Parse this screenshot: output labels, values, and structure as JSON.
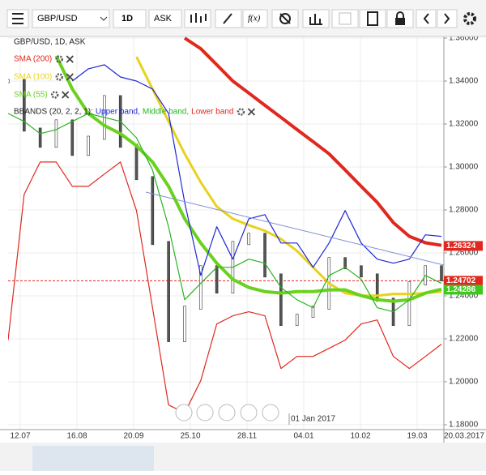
{
  "toolbar": {
    "symbol": "GBP/USD",
    "period": "1D",
    "price_type": "ASK"
  },
  "chart_data": {
    "type": "line",
    "bbands_label": "BBANDS (20, 2, 2, 1):",
    "marker_label": "01 Jan 2017",
    "xtick_labels": [
      "12.07",
      "16.08",
      "20.09",
      "25.10",
      "28.11",
      "04.01",
      "10.02",
      "19.03"
    ],
    "current_date": "20.03.2017",
    "ylim": [
      1.18,
      1.36
    ],
    "yticks": [
      {
        "value": 1.18,
        "label": "1.18000"
      },
      {
        "value": 1.2,
        "label": "1.20000"
      },
      {
        "value": 1.22,
        "label": "1.22000"
      },
      {
        "value": 1.24,
        "label": "1.24000"
      },
      {
        "value": 1.26,
        "label": "1.26000"
      },
      {
        "value": 1.28,
        "label": "1.28000"
      },
      {
        "value": 1.3,
        "label": "1.30000"
      },
      {
        "value": 1.32,
        "label": "1.32000"
      },
      {
        "value": 1.34,
        "label": "1.34000"
      },
      {
        "value": 1.36,
        "label": "1.36000"
      }
    ],
    "grid": true,
    "price_labels": [
      {
        "value": 1.26324,
        "color": "#e0281e"
      },
      {
        "value": 1.24702,
        "color": "#e0281e"
      },
      {
        "value": 1.24286,
        "color": "#3cc81e"
      }
    ],
    "current_price": 1.24702,
    "series": [
      {
        "name": "GBP/USD, 1D, ASK",
        "color": "#333333",
        "style": "price",
        "values": [
          1.34,
          1.3174,
          1.3099,
          1.3212,
          1.3061,
          1.3136,
          1.3325,
          1.3099,
          1.2948,
          1.2646,
          1.2194,
          1.2345,
          1.2533,
          1.242,
          1.2646,
          1.2684,
          1.2495,
          1.2269,
          1.2307,
          1.2345,
          1.2571,
          1.2533,
          1.2495,
          1.2382,
          1.2269,
          1.2458,
          1.2533,
          1.2477
        ]
      },
      {
        "name": "SMA (200)",
        "color": "#e0281e",
        "width": 4,
        "values": [
          null,
          null,
          null,
          null,
          null,
          null,
          null,
          null,
          null,
          null,
          null,
          1.36,
          1.3551,
          1.3476,
          1.34,
          1.3344,
          1.3287,
          1.3231,
          1.3174,
          1.3118,
          1.3061,
          1.2986,
          1.291,
          1.2835,
          1.2741,
          1.2677,
          1.2647,
          1.2635
        ]
      },
      {
        "name": "SMA (100)",
        "color": "#e8d21e",
        "width": 3,
        "values": [
          null,
          null,
          null,
          null,
          null,
          null,
          null,
          null,
          1.3513,
          1.3363,
          1.3212,
          1.3061,
          1.2929,
          1.2816,
          1.2759,
          1.2729,
          1.2703,
          1.2665,
          1.2609,
          1.2533,
          1.2458,
          1.2413,
          1.2401,
          1.2401,
          1.2409,
          1.2409,
          1.2413,
          1.242
        ]
      },
      {
        "name": "SMA (55)",
        "color": "#6ad21e",
        "width": 4,
        "values": [
          null,
          null,
          null,
          1.3517,
          1.3363,
          1.3249,
          1.3193,
          1.3155,
          1.3099,
          1.3023,
          1.291,
          1.2759,
          1.2646,
          1.2552,
          1.2477,
          1.2439,
          1.242,
          1.2413,
          1.242,
          1.242,
          1.2428,
          1.2428,
          1.2401,
          1.2382,
          1.2375,
          1.2382,
          1.2413,
          1.2431
        ]
      },
      {
        "name": "Upper band,",
        "color": "#1e28d2",
        "width": 1.2,
        "values": [
          null,
          null,
          null,
          null,
          1.34,
          1.3457,
          1.3476,
          1.3419,
          1.34,
          1.3363,
          1.3249,
          1.2835,
          1.2495,
          1.2722,
          1.2571,
          1.2759,
          1.2778,
          1.2646,
          1.2646,
          1.2533,
          1.2646,
          1.2797,
          1.2646,
          1.2571,
          1.2552,
          1.2571,
          1.2684,
          1.2677
        ]
      },
      {
        "name": "Middle band,",
        "color": "#28b41e",
        "width": 1.2,
        "values": [
          1.3249,
          1.3212,
          1.3155,
          1.3174,
          1.3212,
          1.3249,
          1.3231,
          1.3212,
          1.3136,
          1.2986,
          1.2722,
          1.2382,
          1.2458,
          1.2533,
          1.2533,
          1.2571,
          1.2552,
          1.2439,
          1.2382,
          1.2345,
          1.2495,
          1.2533,
          1.2477,
          1.2345,
          1.2326,
          1.2382,
          1.2495,
          1.2458
        ]
      },
      {
        "name": "Lower band",
        "color": "#e0281e",
        "width": 1.2,
        "values": [
          1.2194,
          1.2872,
          1.3023,
          1.3023,
          1.291,
          1.291,
          1.2967,
          1.3023,
          1.2797,
          1.2345,
          1.1892,
          1.1855,
          1.2005,
          1.2269,
          1.2307,
          1.2326,
          1.2307,
          1.2062,
          1.2118,
          1.2118,
          1.2156,
          1.2194,
          1.2269,
          1.2288,
          1.2118,
          1.2062,
          1.2118,
          1.2175
        ]
      }
    ]
  }
}
